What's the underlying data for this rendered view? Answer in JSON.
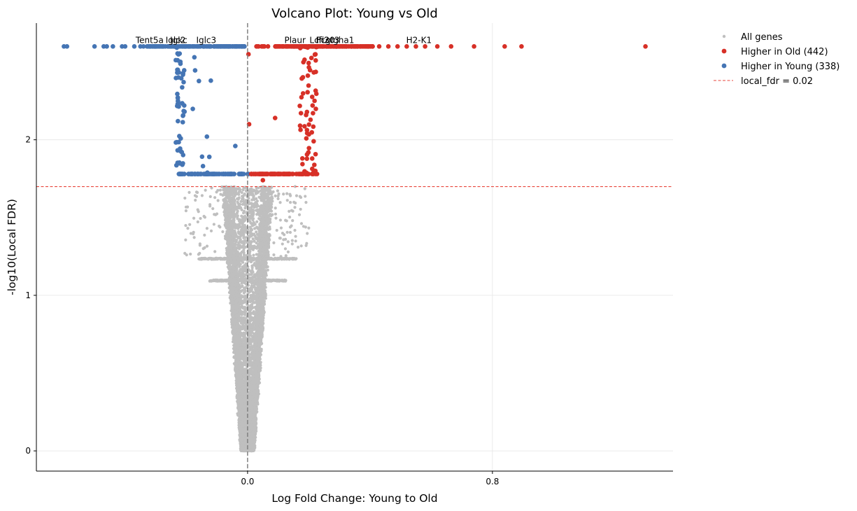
{
  "chart_data": {
    "type": "scatter",
    "title": "Volcano Plot: Young vs Old",
    "xlabel": "Log Fold Change: Young to Old",
    "ylabel": "-log10(Local FDR)",
    "xlim": [
      -0.69,
      1.39
    ],
    "ylim": [
      -0.13,
      2.75
    ],
    "xticks": [
      0.0,
      0.8
    ],
    "xtick_labels": [
      "0.0",
      "0.8"
    ],
    "yticks": [
      0,
      1,
      2
    ],
    "ytick_labels": [
      "0",
      "1",
      "2"
    ],
    "grid": true,
    "legend_position": "outside-top-right",
    "threshold": {
      "y": 1.699,
      "label": "local_fdr = 0.02",
      "color": "#e8473e"
    },
    "vline": {
      "x": 0.0,
      "color": "#808080"
    },
    "colors": {
      "all": "#bfbfbf",
      "old": "#d73027",
      "young": "#4575b4"
    },
    "series": [
      {
        "name": "All genes",
        "role": "all",
        "count_estimate": 8000
      },
      {
        "name": "Higher in Old (442)",
        "role": "old",
        "count": 442
      },
      {
        "name": "Higher in Young (338)",
        "role": "young",
        "count": 338
      }
    ],
    "ceiling_y": 2.6,
    "lower_band_y": 1.78,
    "highlight_points": {
      "old": [
        [
          1.3,
          2.6
        ],
        [
          0.895,
          2.6
        ],
        [
          0.84,
          2.6
        ],
        [
          0.74,
          2.6
        ],
        [
          0.665,
          2.6
        ],
        [
          0.62,
          2.6
        ],
        [
          0.58,
          2.6
        ],
        [
          0.55,
          2.6
        ],
        [
          0.52,
          2.6
        ],
        [
          0.49,
          2.6
        ],
        [
          0.46,
          2.6
        ],
        [
          0.43,
          2.6
        ]
      ],
      "young": [
        [
          -0.6,
          2.6
        ],
        [
          -0.59,
          2.6
        ],
        [
          -0.5,
          2.6
        ],
        [
          -0.47,
          2.6
        ],
        [
          -0.46,
          2.6
        ],
        [
          -0.44,
          2.6
        ],
        [
          -0.41,
          2.6
        ],
        [
          -0.4,
          2.6
        ],
        [
          -0.37,
          2.6
        ],
        [
          -0.35,
          2.6
        ],
        [
          -0.34,
          2.6
        ]
      ]
    },
    "gene_labels": [
      {
        "text": "Tent5a",
        "x": -0.32,
        "y": 2.6
      },
      {
        "text": "Iglc2",
        "x": -0.235,
        "y": 2.6
      },
      {
        "text": "Igkc",
        "x": -0.225,
        "y": 2.6
      },
      {
        "text": "Iglc3",
        "x": -0.135,
        "y": 2.6
      },
      {
        "text": "Plaur",
        "x": 0.155,
        "y": 2.6
      },
      {
        "text": "Lcn2",
        "x": 0.235,
        "y": 2.6
      },
      {
        "text": "Ifi30",
        "x": 0.255,
        "y": 2.6
      },
      {
        "text": "Fcgr3",
        "x": 0.262,
        "y": 2.6
      },
      {
        "text": "Igha1",
        "x": 0.31,
        "y": 2.6
      },
      {
        "text": "H2-K1",
        "x": 0.56,
        "y": 2.6
      }
    ]
  }
}
